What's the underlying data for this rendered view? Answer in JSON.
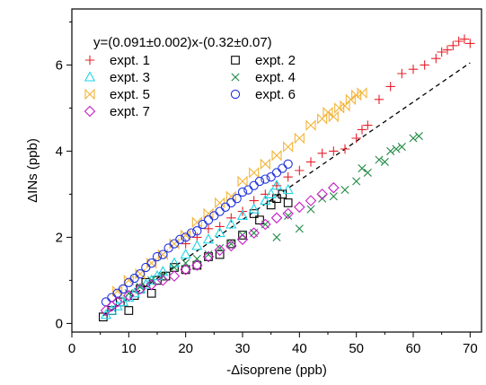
{
  "chart_data": {
    "type": "scatter",
    "title": "",
    "xlabel": "-Δisoprene (ppb)",
    "ylabel": "ΔINs (ppb)",
    "xlim": [
      0,
      72
    ],
    "ylim": [
      -0.2,
      7.3
    ],
    "x_ticks": [
      0,
      10,
      20,
      30,
      40,
      50,
      60,
      70
    ],
    "y_ticks": [
      0,
      2,
      4,
      6
    ],
    "grid": false,
    "legend_position": "top-left",
    "fit": {
      "label": "y=(0.091±0.002)x-(0.32±0.07)",
      "slope": 0.091,
      "intercept": -0.32,
      "x_range": [
        5.5,
        70
      ],
      "color": "#000000",
      "style": "dashed"
    },
    "series": [
      {
        "name": "expt. 1",
        "marker": "plus",
        "color": "#e8202a",
        "x": [
          20,
          22,
          24,
          26,
          28,
          30,
          32,
          34,
          36,
          38,
          40,
          42,
          44,
          46,
          48,
          50,
          51,
          52,
          54,
          56,
          58,
          60,
          62,
          64,
          65,
          66,
          67,
          68,
          69,
          70
        ],
        "y": [
          1.85,
          2.0,
          2.2,
          2.25,
          2.45,
          2.6,
          2.85,
          3.0,
          3.2,
          3.4,
          3.55,
          3.75,
          3.95,
          4.0,
          4.05,
          4.3,
          4.5,
          4.6,
          5.2,
          5.5,
          5.8,
          5.9,
          6.0,
          6.15,
          6.3,
          6.35,
          6.45,
          6.55,
          6.6,
          6.5
        ]
      },
      {
        "name": "expt. 2",
        "marker": "square",
        "color": "#000000",
        "x": [
          5.5,
          7,
          8.5,
          10,
          11,
          12,
          13,
          14,
          15,
          16.5,
          18,
          20,
          22,
          24,
          26,
          28,
          30,
          32,
          33,
          35,
          36,
          37,
          38
        ],
        "y": [
          0.15,
          0.3,
          0.5,
          0.3,
          0.65,
          0.8,
          0.95,
          0.7,
          1.0,
          1.1,
          1.3,
          1.25,
          1.35,
          1.55,
          1.6,
          1.85,
          2.05,
          2.55,
          2.4,
          2.75,
          2.9,
          3.0,
          2.8
        ]
      },
      {
        "name": "expt. 3",
        "marker": "triangle",
        "color": "#22d4e6",
        "x": [
          6,
          7,
          8,
          9,
          10,
          11,
          12,
          13,
          14,
          15,
          16,
          18,
          20,
          22,
          24,
          26,
          28,
          30,
          32,
          34,
          35,
          36,
          38
        ],
        "y": [
          0.2,
          0.3,
          0.4,
          0.5,
          0.6,
          0.7,
          0.8,
          0.9,
          1.0,
          1.1,
          1.2,
          1.4,
          1.6,
          1.8,
          1.95,
          2.1,
          2.3,
          2.5,
          2.65,
          2.85,
          3.0,
          3.2,
          3.1
        ]
      },
      {
        "name": "expt. 4",
        "marker": "x",
        "color": "#1f8a45",
        "x": [
          10,
          12,
          14,
          16,
          18,
          20,
          22,
          24,
          26,
          28,
          30,
          32,
          34,
          36,
          38,
          40,
          42,
          44,
          46,
          48,
          50,
          51,
          52,
          54,
          55,
          56,
          57,
          58,
          60,
          61
        ],
        "y": [
          0.7,
          0.85,
          1.0,
          1.1,
          1.3,
          1.4,
          1.5,
          1.6,
          1.75,
          1.85,
          2.05,
          2.1,
          2.3,
          2.0,
          2.5,
          2.2,
          2.65,
          2.9,
          2.95,
          3.1,
          3.3,
          3.6,
          3.5,
          3.8,
          3.75,
          4.0,
          4.05,
          4.1,
          4.3,
          4.35
        ]
      },
      {
        "name": "expt. 5",
        "marker": "bowtie",
        "color": "#f2b53a",
        "x": [
          8,
          10,
          12,
          14,
          16,
          18,
          20,
          22,
          24,
          26,
          28,
          30,
          32,
          34,
          36,
          38,
          40,
          42,
          44,
          45,
          46,
          47,
          48,
          49,
          50,
          51
        ],
        "y": [
          0.75,
          1.0,
          1.15,
          1.4,
          1.6,
          1.85,
          2.05,
          2.35,
          2.55,
          2.8,
          2.95,
          3.3,
          3.5,
          3.7,
          3.9,
          4.1,
          4.3,
          4.6,
          4.75,
          4.9,
          4.8,
          5.0,
          5.05,
          5.2,
          5.3,
          5.35
        ]
      },
      {
        "name": "expt. 6",
        "marker": "circle",
        "color": "#2233dd",
        "x": [
          6,
          7,
          8,
          9,
          10,
          11,
          12,
          13,
          14,
          15,
          16,
          17,
          18,
          19,
          20,
          21,
          22,
          23,
          24,
          25,
          26,
          27,
          28,
          29,
          30,
          31,
          32,
          33,
          34,
          35,
          36,
          37,
          38
        ],
        "y": [
          0.5,
          0.6,
          0.7,
          0.8,
          0.95,
          1.05,
          1.15,
          1.3,
          1.4,
          1.55,
          1.6,
          1.75,
          1.85,
          1.95,
          2.0,
          2.1,
          2.15,
          2.3,
          2.4,
          2.5,
          2.6,
          2.7,
          2.8,
          2.9,
          3.05,
          3.1,
          3.2,
          3.3,
          3.35,
          3.4,
          3.5,
          3.6,
          3.7
        ]
      },
      {
        "name": "expt. 7",
        "marker": "diamond",
        "color": "#c51fc3",
        "x": [
          6,
          7,
          8,
          10,
          12,
          14,
          16,
          18,
          20,
          22,
          24,
          26,
          28,
          30,
          32,
          34,
          36,
          38,
          40,
          42,
          44,
          46
        ],
        "y": [
          0.3,
          0.4,
          0.5,
          0.65,
          0.8,
          0.9,
          1.0,
          1.1,
          1.25,
          1.35,
          1.55,
          1.7,
          1.8,
          1.95,
          2.1,
          2.3,
          2.45,
          2.55,
          2.7,
          2.85,
          3.0,
          3.15
        ]
      }
    ]
  }
}
